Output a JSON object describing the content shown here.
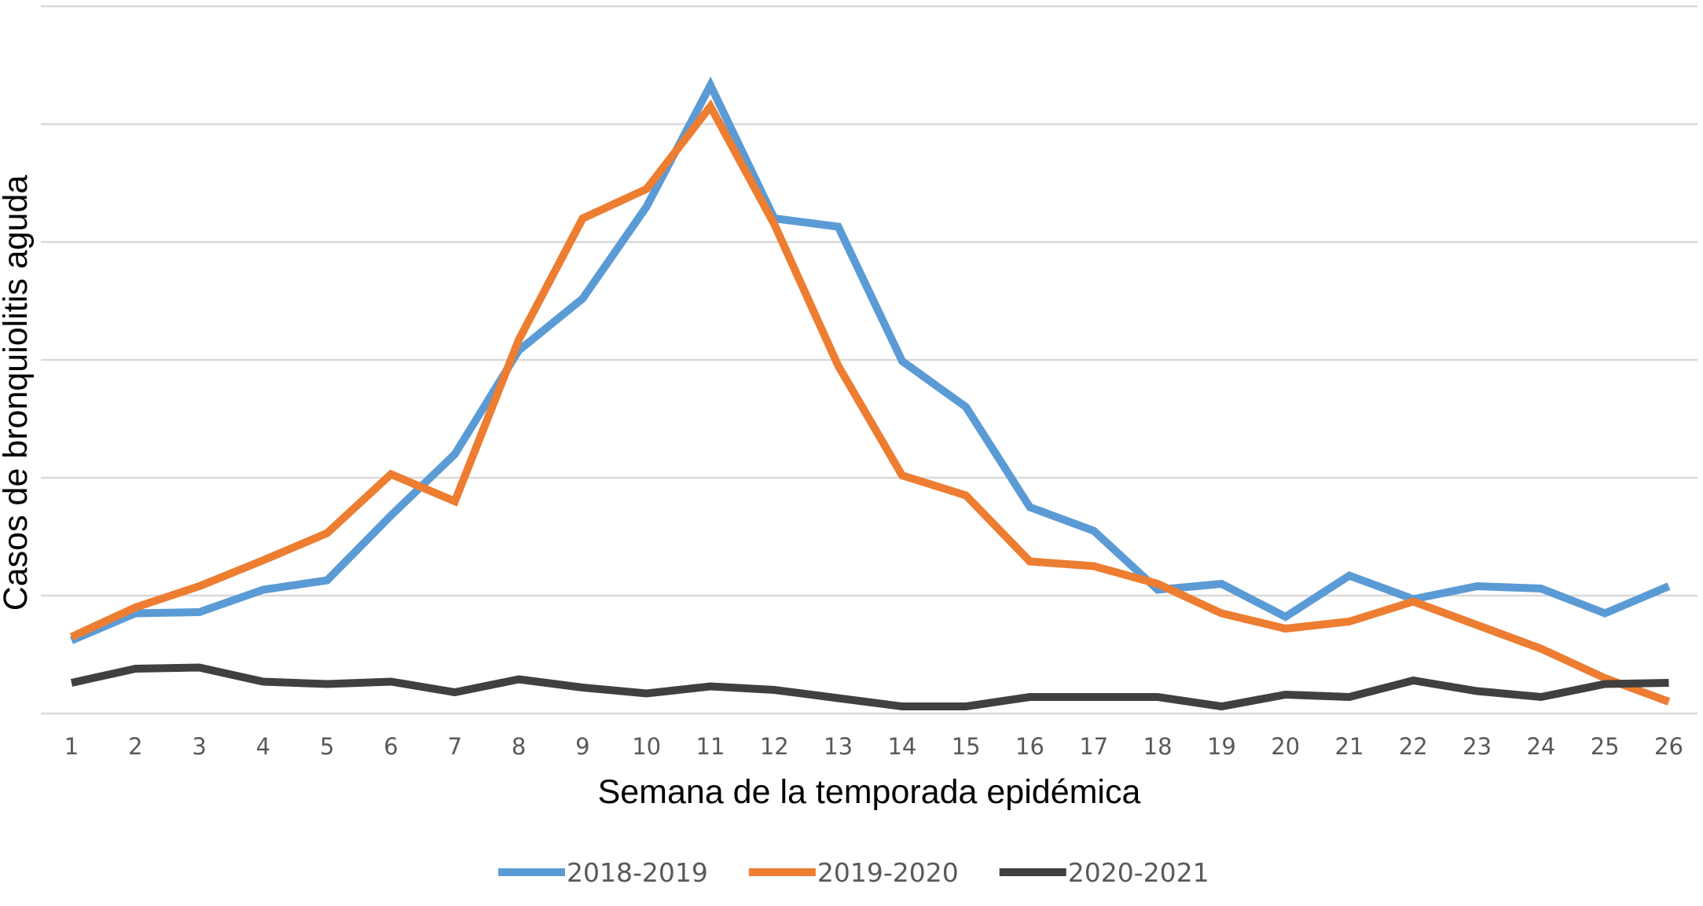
{
  "chart_data": {
    "type": "line",
    "title": "",
    "xlabel": "Semana de la temporada epidémica",
    "ylabel": "Casos de bronquiolitis aguda",
    "x": [
      1,
      2,
      3,
      4,
      5,
      6,
      7,
      8,
      9,
      10,
      11,
      12,
      13,
      14,
      15,
      16,
      17,
      18,
      19,
      20,
      21,
      22,
      23,
      24,
      25,
      26
    ],
    "ylim": [
      0,
      6
    ],
    "y_tick_labels_shown": false,
    "grid": true,
    "legend_position": "bottom",
    "series": [
      {
        "name": "2018-2019",
        "color": "#5b9bd5",
        "values": [
          0.62,
          0.85,
          0.86,
          1.05,
          1.13,
          1.68,
          2.2,
          3.08,
          3.52,
          4.3,
          5.33,
          4.2,
          4.13,
          2.99,
          2.6,
          1.75,
          1.55,
          1.05,
          1.1,
          0.82,
          1.17,
          0.97,
          1.08,
          1.06,
          0.85,
          1.08
        ]
      },
      {
        "name": "2019-2020",
        "color": "#ed7d31",
        "values": [
          0.65,
          0.9,
          1.08,
          1.3,
          1.53,
          2.03,
          1.8,
          3.17,
          4.2,
          4.45,
          5.15,
          4.15,
          2.95,
          2.02,
          1.85,
          1.29,
          1.25,
          1.1,
          0.85,
          0.72,
          0.78,
          0.95,
          0.75,
          0.55,
          0.3,
          0.1
        ]
      },
      {
        "name": "2020-2021",
        "color": "#404040",
        "values": [
          0.26,
          0.38,
          0.39,
          0.27,
          0.25,
          0.27,
          0.18,
          0.29,
          0.22,
          0.17,
          0.23,
          0.2,
          0.13,
          0.06,
          0.06,
          0.14,
          0.14,
          0.14,
          0.06,
          0.16,
          0.14,
          0.28,
          0.19,
          0.14,
          0.25,
          0.26
        ]
      }
    ]
  }
}
